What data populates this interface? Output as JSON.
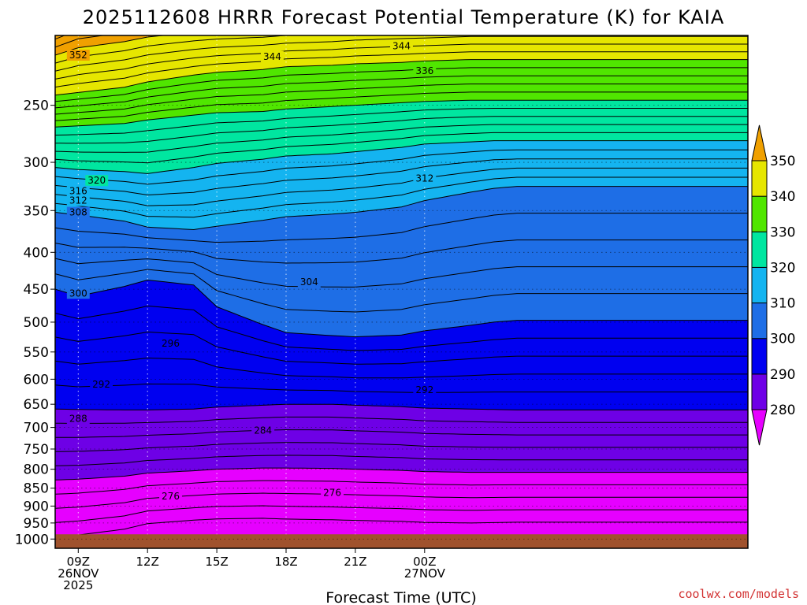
{
  "chart_data": {
    "type": "heatmap",
    "title": "2025112608 HRRR Forecast Potential Temperature (K) for KAIA",
    "xlabel": "Forecast Time (UTC)",
    "credit": "coolwx.com/models",
    "x_range_hours": [
      8,
      38
    ],
    "y_scale": "log-pressure",
    "y_range_hpa": [
      1030,
      200
    ],
    "y_ticks": [
      250,
      300,
      350,
      400,
      450,
      500,
      550,
      600,
      650,
      700,
      750,
      800,
      850,
      900,
      950,
      1000
    ],
    "x_ticks": [
      {
        "hour": 9,
        "lines": [
          "09Z",
          "26NOV",
          "2025"
        ]
      },
      {
        "hour": 12,
        "lines": [
          "12Z"
        ]
      },
      {
        "hour": 15,
        "lines": [
          "15Z"
        ]
      },
      {
        "hour": 18,
        "lines": [
          "18Z"
        ]
      },
      {
        "hour": 21,
        "lines": [
          "21Z"
        ]
      },
      {
        "hour": 24,
        "lines": [
          "00Z",
          "27NOV"
        ]
      }
    ],
    "colorbar": {
      "levels": [
        280,
        290,
        300,
        310,
        320,
        330,
        340,
        350
      ],
      "bins": [
        {
          "range": [
            270,
            280
          ],
          "color": "#e600ff"
        },
        {
          "range": [
            280,
            290
          ],
          "color": "#6e00e6"
        },
        {
          "range": [
            290,
            300
          ],
          "color": "#0000f0"
        },
        {
          "range": [
            300,
            310
          ],
          "color": "#1e6ee6"
        },
        {
          "range": [
            310,
            320
          ],
          "color": "#14b4f0"
        },
        {
          "range": [
            320,
            330
          ],
          "color": "#00e6a0"
        },
        {
          "range": [
            330,
            340
          ],
          "color": "#50e600"
        },
        {
          "range": [
            340,
            350
          ],
          "color": "#e6e600"
        },
        {
          "range": [
            350,
            360
          ],
          "color": "#f0a000"
        }
      ]
    },
    "contour_interval_K": 2,
    "contour_labels": [
      {
        "value": 352,
        "hour": 9.0,
        "hpa": 213
      },
      {
        "value": 344,
        "hour": 17.4,
        "hpa": 214
      },
      {
        "value": 344,
        "hour": 23.0,
        "hpa": 207
      },
      {
        "value": 336,
        "hour": 24.0,
        "hpa": 224
      },
      {
        "value": 320,
        "hour": 9.8,
        "hpa": 318
      },
      {
        "value": 316,
        "hour": 9.0,
        "hpa": 329
      },
      {
        "value": 312,
        "hour": 9.0,
        "hpa": 339
      },
      {
        "value": 308,
        "hour": 9.0,
        "hpa": 352
      },
      {
        "value": 312,
        "hour": 24.0,
        "hpa": 316
      },
      {
        "value": 304,
        "hour": 19.0,
        "hpa": 440
      },
      {
        "value": 300,
        "hour": 9.0,
        "hpa": 456
      },
      {
        "value": 296,
        "hour": 13.0,
        "hpa": 535
      },
      {
        "value": 292,
        "hour": 10.0,
        "hpa": 610
      },
      {
        "value": 292,
        "hour": 24.0,
        "hpa": 621
      },
      {
        "value": 288,
        "hour": 9.0,
        "hpa": 681
      },
      {
        "value": 284,
        "hour": 17.0,
        "hpa": 707
      },
      {
        "value": 276,
        "hour": 13.0,
        "hpa": 872
      },
      {
        "value": 276,
        "hour": 20.0,
        "hpa": 863
      }
    ],
    "boundaries_hpa": {
      "hours": [
        8,
        9,
        11,
        12,
        14,
        15,
        17,
        18,
        20,
        21,
        23,
        24,
        26,
        27,
        28,
        30,
        32,
        34,
        36,
        38
      ],
      "t280": [
        828,
        826,
        818,
        810,
        804,
        800,
        797,
        797,
        798,
        800,
        803,
        806,
        808,
        808,
        808,
        808,
        808,
        808,
        808,
        808
      ],
      "t290": [
        660,
        661,
        662,
        662,
        660,
        656,
        652,
        650,
        650,
        652,
        655,
        658,
        660,
        661,
        662,
        662,
        662,
        662,
        662,
        662
      ],
      "t300": [
        450,
        460,
        446,
        437,
        444,
        476,
        504,
        517,
        522,
        524,
        521,
        514,
        505,
        500,
        497,
        497,
        497,
        497,
        497,
        497
      ],
      "t310": [
        352,
        355,
        362,
        369,
        372,
        368,
        361,
        357,
        354,
        352,
        346,
        339,
        330,
        326,
        324,
        324,
        324,
        324,
        324,
        324
      ],
      "t320": [
        305,
        307,
        309,
        311,
        305,
        301,
        297,
        294,
        292,
        290,
        286,
        283,
        281,
        280,
        280,
        280,
        280,
        280,
        280,
        280
      ],
      "t330": [
        268,
        267,
        265,
        262,
        258,
        256,
        255,
        253,
        251,
        250,
        248,
        247,
        246,
        246,
        246,
        246,
        246,
        246,
        246,
        246
      ],
      "t340": [
        242,
        240,
        236,
        232,
        227,
        225,
        223,
        221,
        220,
        219,
        218,
        217,
        216,
        216,
        216,
        216,
        216,
        216,
        216,
        216
      ],
      "t350": [
        213,
        208,
        204,
        201,
        198,
        197,
        196,
        195,
        194,
        193,
        192,
        192,
        191,
        191,
        191,
        191,
        191,
        191,
        191,
        191
      ]
    },
    "ground_hpa": 985,
    "ground_color": "#a0522d"
  }
}
